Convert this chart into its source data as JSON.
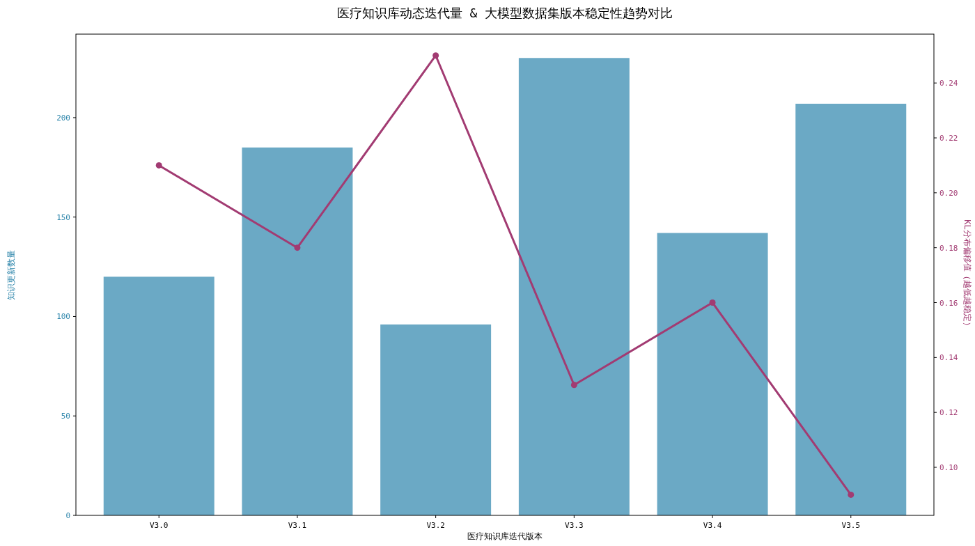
{
  "chart_data": {
    "type": "bar",
    "title": "医疗知识库动态迭代量 & 大模型数据集版本稳定性趋势对比",
    "xlabel": "医疗知识库迭代版本",
    "ylabel": "知识更新数量",
    "y2label": "KL分布偏移值（越低越稳定）",
    "categories": [
      "V3.0",
      "V3.1",
      "V3.2",
      "V3.3",
      "V3.4",
      "V3.5"
    ],
    "series": [
      {
        "color": "#6ba9c5",
        "values": [
          120,
          185,
          96,
          230,
          142,
          207
        ]
      },
      {
        "type": "line",
        "axis": "y2",
        "color": "#a23b72",
        "marker": "circle",
        "values": [
          0.21,
          0.18,
          0.25,
          0.13,
          0.16,
          0.09
        ]
      }
    ],
    "ylim": [
      0,
      242
    ],
    "yticks": [
      0,
      50,
      100,
      150,
      200
    ],
    "y2lim": [
      0.0825,
      0.2578
    ],
    "y2ticks": [
      {
        "value": 0.1,
        "label": "0.10"
      },
      {
        "value": 0.12,
        "label": "0.12"
      },
      {
        "value": 0.14,
        "label": "0.14"
      },
      {
        "value": 0.16,
        "label": "0.16"
      },
      {
        "value": 0.18,
        "label": "0.18"
      },
      {
        "value": 0.2,
        "label": "0.20"
      },
      {
        "value": 0.22,
        "label": "0.22"
      },
      {
        "value": 0.24,
        "label": "0.24"
      }
    ]
  }
}
